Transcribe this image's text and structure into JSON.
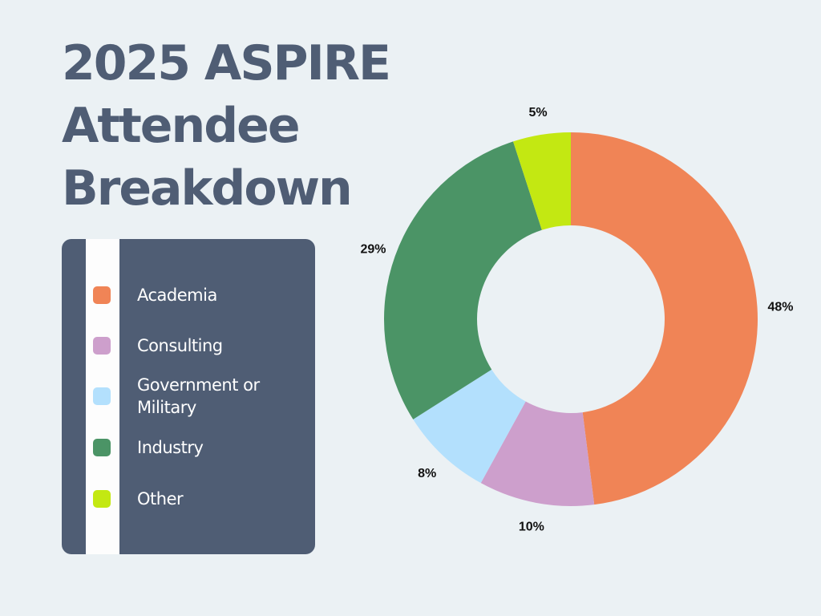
{
  "title_lines": [
    "2025 ASPIRE",
    "Attendee",
    "Breakdown"
  ],
  "legend": {
    "items": [
      {
        "label": "Academia",
        "color": "#f08456"
      },
      {
        "label": "Consulting",
        "color": "#cd9fcc"
      },
      {
        "label": "Government or Military",
        "color": "#b3e0fd"
      },
      {
        "label": "Industry",
        "color": "#4b9466"
      },
      {
        "label": "Other",
        "color": "#c3e812"
      }
    ]
  },
  "chart_data": {
    "type": "pie",
    "subtype": "donut",
    "title": "2025 ASPIRE Attendee Breakdown",
    "categories": [
      "Academia",
      "Consulting",
      "Government or Military",
      "Industry",
      "Other"
    ],
    "values": [
      48,
      10,
      8,
      29,
      5
    ],
    "labels": [
      "48%",
      "10%",
      "8%",
      "29%",
      "5%"
    ],
    "colors": [
      "#f08456",
      "#cd9fcc",
      "#b3e0fd",
      "#4b9466",
      "#c3e812"
    ],
    "unit": "%",
    "start": "top",
    "direction": "clockwise",
    "legend_position": "left"
  }
}
